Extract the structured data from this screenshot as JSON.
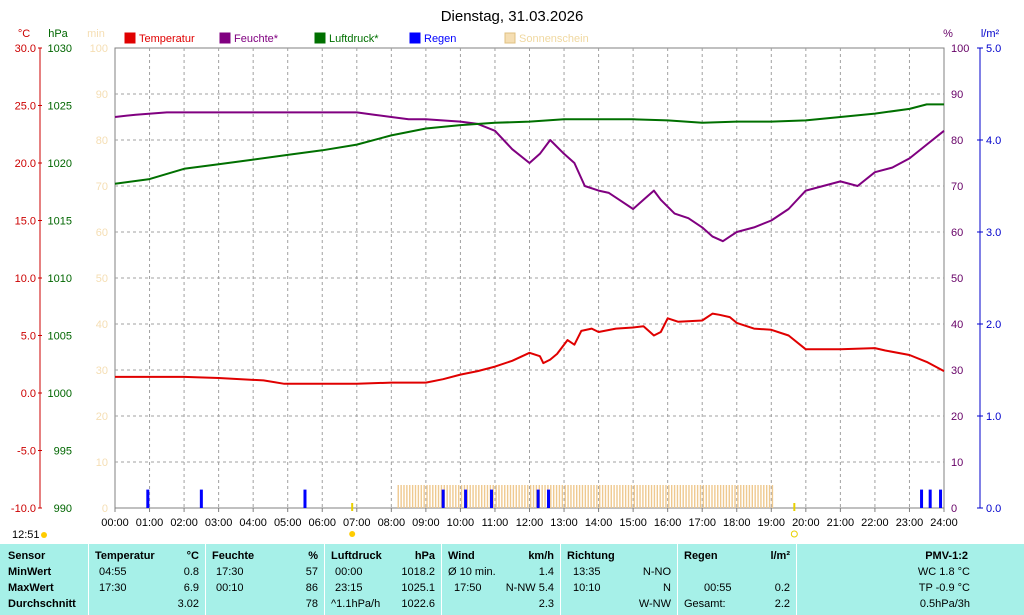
{
  "chart_data": {
    "type": "line",
    "title": "Dienstag, 31.03.2026",
    "x_ticks": [
      "00:00",
      "01:00",
      "02:00",
      "03:00",
      "04:00",
      "05:00",
      "06:00",
      "07:00",
      "08:00",
      "09:00",
      "10:00",
      "11:00",
      "12:00",
      "13:00",
      "14:00",
      "15:00",
      "16:00",
      "17:00",
      "18:00",
      "19:00",
      "20:00",
      "21:00",
      "22:00",
      "23:00",
      "24:00"
    ],
    "time_label": "12:51",
    "axes": {
      "temperature": {
        "unit": "°C",
        "range": [
          -10,
          30
        ],
        "ticks": [
          "30.0",
          "25.0",
          "20.0",
          "15.0",
          "10.0",
          "5.0",
          "0.0",
          "-5.0",
          "-10.0"
        ],
        "color": "#cc0000"
      },
      "pressure": {
        "unit": "hPa",
        "range": [
          990,
          1030
        ],
        "ticks": [
          "1030",
          "1025",
          "1020",
          "1015",
          "1010",
          "1005",
          "1000",
          "995",
          "990"
        ],
        "color": "#006600"
      },
      "sunshine": {
        "unit": "min",
        "range": [
          0,
          100
        ],
        "ticks": [
          "100",
          "90",
          "80",
          "70",
          "60",
          "50",
          "40",
          "30",
          "20",
          "10",
          "0"
        ],
        "color": "#f5deb3"
      },
      "humidity": {
        "unit": "%",
        "range": [
          0,
          100
        ],
        "ticks": [
          "100",
          "90",
          "80",
          "70",
          "60",
          "50",
          "40",
          "30",
          "20",
          "10",
          "0"
        ],
        "color": "#660066"
      },
      "rain": {
        "unit": "l/m²",
        "range": [
          0,
          5
        ],
        "ticks": [
          "5.0",
          "4.0",
          "3.0",
          "2.0",
          "1.0",
          "0.0"
        ],
        "color": "#0000cc"
      }
    },
    "legend": [
      {
        "name": "Temperatur",
        "color": "#e00000"
      },
      {
        "name": "Feuchte*",
        "color": "#800080"
      },
      {
        "name": "Luftdruck*",
        "color": "#007000"
      },
      {
        "name": "Regen",
        "color": "#0000ff"
      },
      {
        "name": "Sonnenschein",
        "color": "#f5deb3"
      }
    ],
    "series": [
      {
        "name": "Temperatur",
        "axis": "temperature",
        "color": "#e00000",
        "x": [
          0,
          1,
          2,
          3,
          4.3,
          4.9,
          6,
          7,
          8,
          9,
          9.5,
          10,
          10.5,
          11,
          11.5,
          12,
          12.3,
          12.4,
          12.6,
          12.8,
          13.1,
          13.3,
          13.5,
          13.8,
          14,
          14.5,
          15,
          15.3,
          15.6,
          15.8,
          16,
          16.3,
          17,
          17.3,
          17.5,
          17.8,
          18,
          18.5,
          19,
          19.5,
          20,
          21,
          22,
          22.3,
          23,
          23.5,
          24
        ],
        "y": [
          1.4,
          1.4,
          1.4,
          1.3,
          1.1,
          0.8,
          0.8,
          0.8,
          0.9,
          0.9,
          1.2,
          1.6,
          1.9,
          2.3,
          2.8,
          3.5,
          3.2,
          2.6,
          2.9,
          3.4,
          4.6,
          4.2,
          5.4,
          5.6,
          5.3,
          5.6,
          5.7,
          5.8,
          5.0,
          5.3,
          6.5,
          6.2,
          6.3,
          6.9,
          6.8,
          6.6,
          6.1,
          5.6,
          5.5,
          5.0,
          3.8,
          3.8,
          3.9,
          3.7,
          3.3,
          2.7,
          1.9
        ]
      },
      {
        "name": "Feuchte*",
        "axis": "humidity",
        "color": "#800080",
        "x": [
          0,
          0.6,
          1.5,
          2,
          3,
          4,
          5,
          6,
          7,
          7.5,
          8,
          8.5,
          9,
          10,
          10.5,
          11,
          11.5,
          12,
          12.3,
          12.6,
          13,
          13.3,
          13.6,
          14,
          14.3,
          14.6,
          15,
          15.3,
          15.6,
          15.8,
          16.2,
          16.6,
          17,
          17.3,
          17.6,
          17.8,
          18,
          18.5,
          19,
          19.5,
          20,
          20.5,
          21,
          21.5,
          22,
          22.5,
          23,
          23.5,
          24
        ],
        "y": [
          85,
          85.5,
          86,
          86,
          86,
          86,
          86,
          86,
          86,
          85.5,
          85,
          84.5,
          84.5,
          84,
          83.5,
          82,
          78,
          75,
          77,
          80,
          77,
          75,
          70,
          69,
          68.5,
          67,
          65,
          67,
          69,
          67,
          64,
          63,
          61,
          59,
          58,
          59,
          60,
          61,
          62.5,
          65,
          69,
          70,
          71,
          70,
          73,
          74,
          76,
          79,
          82
        ]
      },
      {
        "name": "Luftdruck*",
        "axis": "pressure",
        "color": "#007000",
        "x": [
          0,
          1,
          2,
          3,
          4,
          5,
          6,
          7,
          8,
          9,
          10,
          11,
          12,
          13,
          14,
          15,
          16,
          17,
          18,
          19,
          20,
          21,
          22,
          23,
          23.5,
          24
        ],
        "y": [
          1018.2,
          1018.6,
          1019.5,
          1019.9,
          1020.3,
          1020.7,
          1021.1,
          1021.6,
          1022.4,
          1023,
          1023.3,
          1023.5,
          1023.6,
          1023.8,
          1023.8,
          1023.8,
          1023.7,
          1023.5,
          1023.6,
          1023.6,
          1023.7,
          1024,
          1024.3,
          1024.7,
          1025.1,
          1025.1
        ]
      },
      {
        "name": "Regen",
        "axis": "rain",
        "color": "#0000ff",
        "type": "bar",
        "x": [
          0.95,
          2.5,
          5.5,
          9.5,
          10.15,
          10.9,
          12.25,
          12.55,
          23.35,
          23.6,
          23.9
        ],
        "y": [
          0.2,
          0.2,
          0.2,
          0.2,
          0.2,
          0.2,
          0.2,
          0.2,
          0.2,
          0.2,
          0.2
        ]
      },
      {
        "name": "Sonnenschein",
        "axis": "sunshine",
        "color": "#f5deb3",
        "type": "area",
        "x": [
          8.2,
          19.1
        ],
        "y": [
          5,
          5
        ]
      }
    ],
    "markers": {
      "sunrise": "06:52",
      "sunset": "19:40"
    }
  },
  "stats": {
    "sensor": {
      "header": "Sensor",
      "rows": [
        "MinWert",
        "MaxWert",
        "Durchschnitt"
      ]
    },
    "temperature": {
      "header": "Temperatur",
      "unit": "°C",
      "rows": [
        [
          "04:55",
          "0.8"
        ],
        [
          "17:30",
          "6.9"
        ],
        [
          "",
          "3.02"
        ]
      ]
    },
    "humidity": {
      "header": "Feuchte",
      "unit": "%",
      "rows": [
        [
          "17:30",
          "57"
        ],
        [
          "00:10",
          "86"
        ],
        [
          "",
          "78"
        ]
      ]
    },
    "pressure": {
      "header": "Luftdruck",
      "unit": "hPa",
      "rows": [
        [
          "00:00",
          "1018.2"
        ],
        [
          "23:15",
          "1025.1"
        ],
        [
          "^1.1hPa/h",
          "1022.6"
        ]
      ]
    },
    "wind": {
      "header": "Wind",
      "unit": "km/h",
      "rows": [
        [
          "Ø 10 min.",
          "1.4"
        ],
        [
          "17:50",
          "N-NW 5.4"
        ],
        [
          "",
          "2.3"
        ]
      ]
    },
    "direction": {
      "header": "Richtung",
      "rows": [
        [
          "13:35",
          "N-NO"
        ],
        [
          "10:10",
          "N"
        ],
        [
          "",
          "W-NW"
        ]
      ]
    },
    "rain": {
      "header": "Regen",
      "unit": "l/m²",
      "rows": [
        [
          "",
          ""
        ],
        [
          "00:55",
          "0.2"
        ],
        [
          "Gesamt:",
          "2.2"
        ]
      ]
    },
    "pmv": {
      "header": "PMV-1:2",
      "rows": [
        "WC 1.8 °C",
        "TP -0.9 °C",
        "0.5hPa/3h"
      ]
    }
  }
}
